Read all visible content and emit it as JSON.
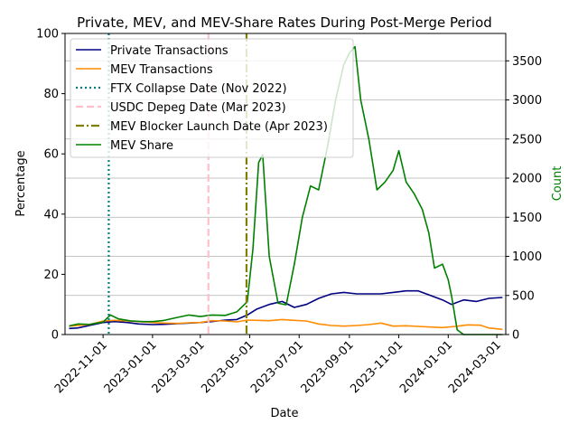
{
  "chart_data": {
    "type": "line",
    "title": "Private, MEV, and MEV-Share Rates During Post-Merge Period",
    "xlabel": "Date",
    "ylabel": "Percentage",
    "ylabel_right": "Count",
    "ylim": [
      0,
      100
    ],
    "ylim_right": [
      0,
      3850
    ],
    "xlim": [
      "2022-09-15",
      "2024-03-12"
    ],
    "x_ticks": [
      "2022-11-01",
      "2023-01-01",
      "2023-03-01",
      "2023-05-01",
      "2023-07-01",
      "2023-09-01",
      "2023-11-01",
      "2024-01-01",
      "2024-03-01"
    ],
    "y_ticks": [
      0,
      20,
      40,
      60,
      80,
      100
    ],
    "y_ticks_right": [
      0,
      500,
      1000,
      1500,
      2000,
      2500,
      3000,
      3500
    ],
    "grid": "right-axis horizontal",
    "legend_position": "top-left",
    "series": [
      {
        "name": "Private Transactions",
        "axis": "left",
        "color": "#000080",
        "style": "solid",
        "points": [
          [
            "2022-09-20",
            2.0
          ],
          [
            "2022-10-01",
            2.2
          ],
          [
            "2022-10-15",
            3.0
          ],
          [
            "2022-11-01",
            4.0
          ],
          [
            "2022-11-15",
            4.3
          ],
          [
            "2022-12-01",
            4.0
          ],
          [
            "2022-12-15",
            3.5
          ],
          [
            "2023-01-01",
            3.3
          ],
          [
            "2023-01-15",
            3.4
          ],
          [
            "2023-02-01",
            3.6
          ],
          [
            "2023-02-15",
            3.8
          ],
          [
            "2023-03-01",
            4.0
          ],
          [
            "2023-03-15",
            4.3
          ],
          [
            "2023-04-01",
            4.8
          ],
          [
            "2023-04-15",
            5.0
          ],
          [
            "2023-04-28",
            6.5
          ],
          [
            "2023-05-10",
            8.5
          ],
          [
            "2023-05-25",
            10.0
          ],
          [
            "2023-06-10",
            11.0
          ],
          [
            "2023-06-25",
            9.0
          ],
          [
            "2023-07-10",
            10.0
          ],
          [
            "2023-07-25",
            12.0
          ],
          [
            "2023-08-10",
            13.5
          ],
          [
            "2023-08-25",
            14.0
          ],
          [
            "2023-09-10",
            13.5
          ],
          [
            "2023-09-25",
            13.5
          ],
          [
            "2023-10-10",
            13.5
          ],
          [
            "2023-10-25",
            14.0
          ],
          [
            "2023-11-10",
            14.5
          ],
          [
            "2023-11-25",
            14.5
          ],
          [
            "2023-12-10",
            13.0
          ],
          [
            "2023-12-25",
            11.5
          ],
          [
            "2024-01-05",
            10.0
          ],
          [
            "2024-01-20",
            11.5
          ],
          [
            "2024-02-05",
            11.0
          ],
          [
            "2024-02-20",
            12.0
          ],
          [
            "2024-03-08",
            12.3
          ]
        ]
      },
      {
        "name": "MEV Transactions",
        "axis": "left",
        "color": "#ff8c00",
        "style": "solid",
        "points": [
          [
            "2022-09-20",
            2.8
          ],
          [
            "2022-10-15",
            3.3
          ],
          [
            "2022-11-01",
            4.5
          ],
          [
            "2022-11-15",
            4.7
          ],
          [
            "2022-12-01",
            4.5
          ],
          [
            "2022-12-15",
            4.3
          ],
          [
            "2023-01-01",
            4.0
          ],
          [
            "2023-01-15",
            3.8
          ],
          [
            "2023-02-01",
            3.7
          ],
          [
            "2023-02-15",
            3.9
          ],
          [
            "2023-03-01",
            4.0
          ],
          [
            "2023-03-15",
            4.6
          ],
          [
            "2023-04-01",
            4.5
          ],
          [
            "2023-04-15",
            4.2
          ],
          [
            "2023-04-28",
            4.8
          ],
          [
            "2023-05-10",
            4.7
          ],
          [
            "2023-05-25",
            4.6
          ],
          [
            "2023-06-10",
            5.0
          ],
          [
            "2023-06-25",
            4.7
          ],
          [
            "2023-07-10",
            4.5
          ],
          [
            "2023-07-25",
            3.5
          ],
          [
            "2023-08-10",
            3.0
          ],
          [
            "2023-08-25",
            2.8
          ],
          [
            "2023-09-10",
            3.0
          ],
          [
            "2023-09-25",
            3.3
          ],
          [
            "2023-10-10",
            3.8
          ],
          [
            "2023-10-25",
            2.8
          ],
          [
            "2023-11-10",
            2.9
          ],
          [
            "2023-11-25",
            2.7
          ],
          [
            "2023-12-10",
            2.5
          ],
          [
            "2023-12-25",
            2.3
          ],
          [
            "2024-01-10",
            2.7
          ],
          [
            "2024-01-25",
            3.2
          ],
          [
            "2024-02-10",
            3.1
          ],
          [
            "2024-02-20",
            2.2
          ],
          [
            "2024-03-08",
            1.7
          ]
        ]
      },
      {
        "name": "MEV Share",
        "axis": "right",
        "color": "#008000",
        "style": "solid",
        "points": [
          [
            "2022-09-20",
            110
          ],
          [
            "2022-10-01",
            135
          ],
          [
            "2022-10-15",
            130
          ],
          [
            "2022-11-01",
            160
          ],
          [
            "2022-11-10",
            250
          ],
          [
            "2022-11-20",
            200
          ],
          [
            "2022-12-05",
            175
          ],
          [
            "2022-12-20",
            165
          ],
          [
            "2023-01-01",
            165
          ],
          [
            "2023-01-15",
            180
          ],
          [
            "2023-02-01",
            220
          ],
          [
            "2023-02-15",
            250
          ],
          [
            "2023-03-01",
            230
          ],
          [
            "2023-03-15",
            250
          ],
          [
            "2023-04-01",
            245
          ],
          [
            "2023-04-15",
            290
          ],
          [
            "2023-04-28",
            420
          ],
          [
            "2023-05-05",
            1100
          ],
          [
            "2023-05-12",
            2200
          ],
          [
            "2023-05-17",
            2300
          ],
          [
            "2023-05-25",
            1000
          ],
          [
            "2023-06-05",
            400
          ],
          [
            "2023-06-15",
            380
          ],
          [
            "2023-06-25",
            900
          ],
          [
            "2023-07-05",
            1500
          ],
          [
            "2023-07-15",
            1900
          ],
          [
            "2023-07-25",
            1850
          ],
          [
            "2023-08-05",
            2400
          ],
          [
            "2023-08-15",
            3000
          ],
          [
            "2023-08-25",
            3450
          ],
          [
            "2023-09-01",
            3600
          ],
          [
            "2023-09-08",
            3680
          ],
          [
            "2023-09-15",
            3000
          ],
          [
            "2023-09-25",
            2500
          ],
          [
            "2023-10-05",
            1850
          ],
          [
            "2023-10-15",
            1950
          ],
          [
            "2023-10-25",
            2100
          ],
          [
            "2023-11-01",
            2350
          ],
          [
            "2023-11-10",
            1950
          ],
          [
            "2023-11-20",
            1800
          ],
          [
            "2023-11-30",
            1600
          ],
          [
            "2023-12-08",
            1300
          ],
          [
            "2023-12-15",
            850
          ],
          [
            "2023-12-25",
            900
          ],
          [
            "2024-01-01",
            700
          ],
          [
            "2024-01-05",
            500
          ],
          [
            "2024-01-12",
            60
          ],
          [
            "2024-01-20",
            0
          ],
          [
            "2024-03-08",
            0
          ]
        ]
      },
      {
        "name": "FTX Collapse Date (Nov 2022)",
        "axis": "left",
        "color": "#008080",
        "style": "dotted",
        "vline": "2022-11-08"
      },
      {
        "name": "USDC Depeg Date (Mar 2023)",
        "axis": "left",
        "color": "#ffc0cb",
        "style": "dashed",
        "vline": "2023-03-11"
      },
      {
        "name": "MEV Blocker Launch Date (Apr 2023)",
        "axis": "left",
        "color": "#808000",
        "style": "dashdot",
        "vline": "2023-04-27"
      }
    ]
  }
}
